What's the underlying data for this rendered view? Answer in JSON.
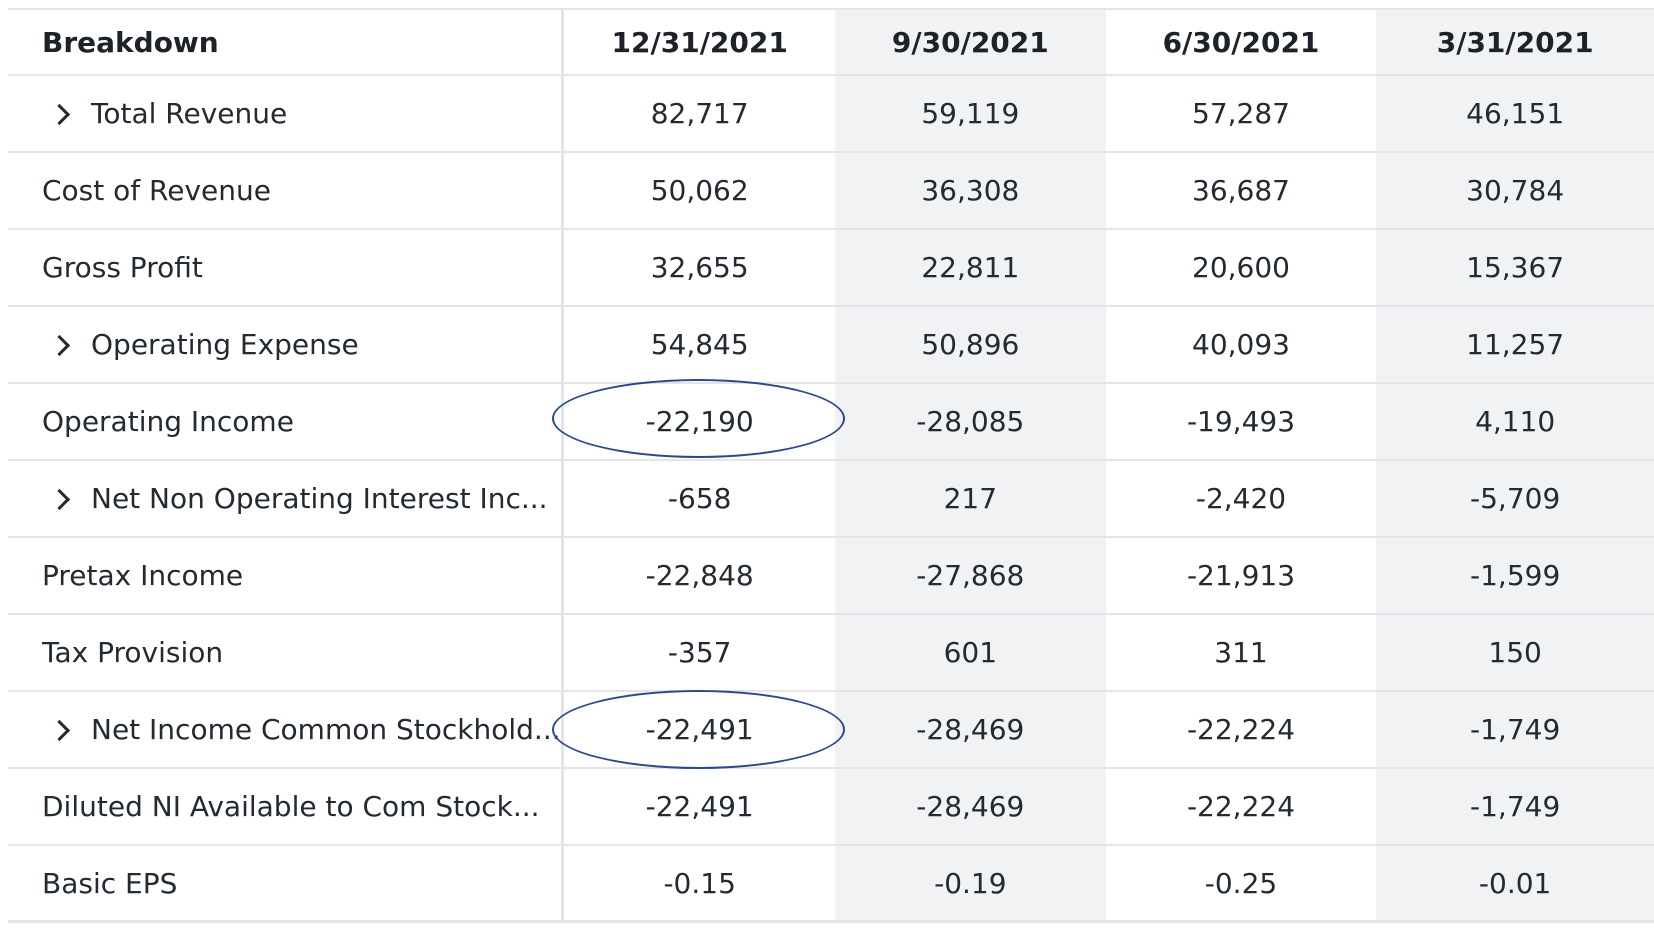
{
  "table": {
    "header": {
      "label": "Breakdown",
      "columns": [
        "12/31/2021",
        "9/30/2021",
        "6/30/2021",
        "3/31/2021"
      ]
    },
    "rows": [
      {
        "label": "Total Revenue",
        "expandable": true,
        "values": [
          "82,717",
          "59,119",
          "57,287",
          "46,151"
        ]
      },
      {
        "label": "Cost of Revenue",
        "expandable": false,
        "values": [
          "50,062",
          "36,308",
          "36,687",
          "30,784"
        ]
      },
      {
        "label": "Gross Profit",
        "expandable": false,
        "values": [
          "32,655",
          "22,811",
          "20,600",
          "15,367"
        ]
      },
      {
        "label": "Operating Expense",
        "expandable": true,
        "values": [
          "54,845",
          "50,896",
          "40,093",
          "11,257"
        ]
      },
      {
        "label": "Operating Income",
        "expandable": false,
        "values": [
          "-22,190",
          "-28,085",
          "-19,493",
          "4,110"
        ]
      },
      {
        "label": "Net Non Operating Interest Inc...",
        "expandable": true,
        "values": [
          "-658",
          "217",
          "-2,420",
          "-5,709"
        ]
      },
      {
        "label": "Pretax Income",
        "expandable": false,
        "values": [
          "-22,848",
          "-27,868",
          "-21,913",
          "-1,599"
        ]
      },
      {
        "label": "Tax Provision",
        "expandable": false,
        "values": [
          "-357",
          "601",
          "311",
          "150"
        ]
      },
      {
        "label": "Net Income Common Stockhold...",
        "expandable": true,
        "values": [
          "-22,491",
          "-28,469",
          "-22,224",
          "-1,749"
        ]
      },
      {
        "label": "Diluted NI Available to Com Stock...",
        "expandable": false,
        "values": [
          "-22,491",
          "-28,469",
          "-22,224",
          "-1,749"
        ]
      },
      {
        "label": "Basic EPS",
        "expandable": false,
        "values": [
          "-0.15",
          "-0.19",
          "-0.25",
          "-0.01"
        ]
      }
    ]
  },
  "annotations": {
    "color": "#2b4a8a"
  }
}
